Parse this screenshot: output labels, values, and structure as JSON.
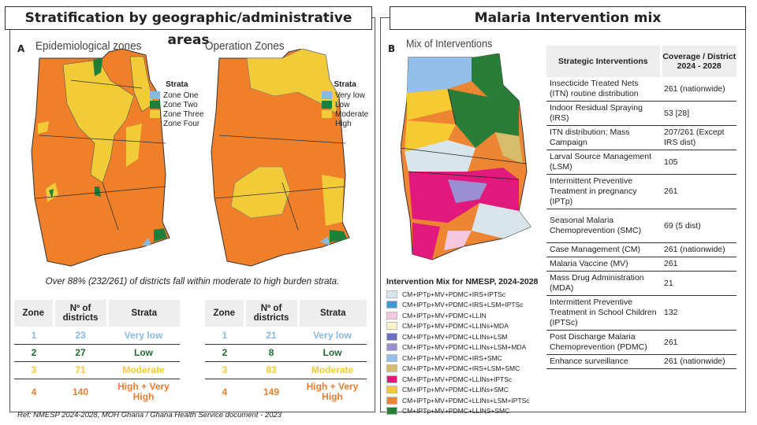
{
  "left": {
    "title": "Stratification by geographic/administrative areas",
    "letter": "A",
    "map1": {
      "title": "Epidemiological zones",
      "legend_title": "Strata",
      "legend": [
        {
          "label": "Zone One",
          "color": "#8ab9e0"
        },
        {
          "label": "Zone Two",
          "color": "#1e7f3a"
        },
        {
          "label": "Zone Three",
          "color": "#f2cc38"
        },
        {
          "label": "Zone Four",
          "color": "#f07f2a"
        }
      ]
    },
    "map2": {
      "title": "Operation Zones",
      "legend_title": "Strata",
      "legend": [
        {
          "label": "Very low",
          "color": "#8ab9e0"
        },
        {
          "label": "Low",
          "color": "#1e7f3a"
        },
        {
          "label": "Moderate",
          "color": "#f2cc38"
        },
        {
          "label": "High",
          "color": "#f07f2a"
        }
      ]
    },
    "caption": "Over 88% (232/261) of districts fall within moderate to high burden strata.",
    "table_headers": [
      "Zone",
      "Nº of districts",
      "Strata"
    ],
    "table1": [
      [
        "1",
        "23",
        "Very low"
      ],
      [
        "2",
        "27",
        "Low"
      ],
      [
        "3",
        "71",
        "Moderate"
      ],
      [
        "4",
        "140",
        "High + Very High"
      ]
    ],
    "table2": [
      [
        "1",
        "21",
        "Very low"
      ],
      [
        "2",
        "8",
        "Low"
      ],
      [
        "3",
        "83",
        "Moderate"
      ],
      [
        "4",
        "149",
        "High + Very High"
      ]
    ],
    "row_colors": [
      "#8ab9e0",
      "#1e6b35",
      "#f2c938",
      "#ef7d31"
    ]
  },
  "ref": "Ref: NMESP 2024-2028, MOH Ghana / Ghana Health Service document - 2023",
  "right": {
    "title": "Malaria Intervention mix",
    "letter": "B",
    "map_title": "Mix of Interventions",
    "legend_title": "Intervention Mix for NMESP, 2024-2028",
    "legend": [
      {
        "label": "CM+IPTp+MV+PDMC+IRS+IPTSc",
        "color": "#d8e6ec"
      },
      {
        "label": "CM+IPTp+MV+PDMC+IRS+LSM+IPTSc",
        "color": "#3d9ad0"
      },
      {
        "label": "CM+IPTp+MV+PDMC+LLIN",
        "color": "#f6c8de"
      },
      {
        "label": "CM+IPTp+MV+PDMC+LLINs+MDA",
        "color": "#fcf2c8"
      },
      {
        "label": "CM+IPTp+MV+PDMC+LLINs+LSM",
        "color": "#6a6fbf"
      },
      {
        "label": "CM+IPTp+MV+PDMC+LLINs+LSM+MDA",
        "color": "#9a8fd0"
      },
      {
        "label": "CM+IPTp+MV+PDMC+IRS+SMC",
        "color": "#92c0ea"
      },
      {
        "label": "CM+IPTp+MV+PDMC+IRS+LSM+SMC",
        "color": "#d6bd6c"
      },
      {
        "label": "CM+IPTp+MV+PDMC+LLINs+IPTSc",
        "color": "#e2197c"
      },
      {
        "label": "CM+IPTp+MV+PDMC+LLINs+SMC",
        "color": "#f6cb32"
      },
      {
        "label": "CM+IPTp+MV+PDMC+LLINs+LSM+IPTSc",
        "color": "#ee8533"
      },
      {
        "label": "CM+IPTp+MV+PDMC+LLINS+SMC",
        "color": "#2a7d38"
      }
    ],
    "table_headers": [
      "Strategic Interventions",
      "Coverage / District 2024 - 2028"
    ],
    "rows": [
      [
        "Insecticide Treated Nets (ITN) routine distribution",
        "261 (nationwide)"
      ],
      [
        "Indoor Residual Spraying (IRS)",
        "53 [28]"
      ],
      [
        "ITN distribution; Mass Campaign",
        "207/261 (Except IRS dist)"
      ],
      [
        "Larval Source Management (LSM)",
        "105"
      ],
      [
        "Intermittent Preventive Treatment in pregnancy (IPTp)",
        "261"
      ],
      [
        "Seasonal Malaria Chemoprevention (SMC)",
        "69 (5 dist)"
      ],
      [
        "Case Management (CM)",
        "261 (nationwide)"
      ],
      [
        "Malaria Vaccine (MV)",
        "261"
      ],
      [
        "Mass Drug Administration (MDA)",
        "21"
      ],
      [
        "Intermittent Preventive Treatment in School Children (IPTSc)",
        "132"
      ],
      [
        "Post Discharge Malaria Chemoprevention (PDMC)",
        "261"
      ],
      [
        "Enhance surveillance",
        "261 (nationwide)"
      ]
    ]
  }
}
